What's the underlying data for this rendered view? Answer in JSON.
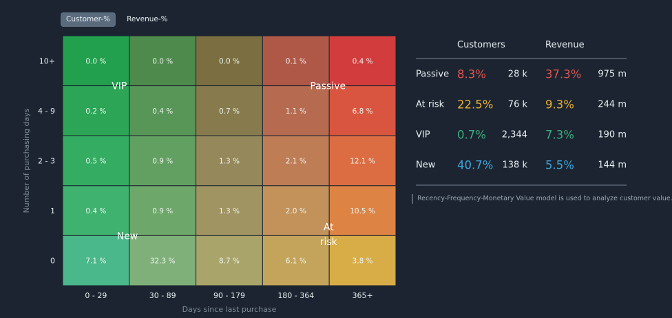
{
  "toggles": [
    {
      "label": "Customer-%",
      "active": true
    },
    {
      "label": "Revenue-%",
      "active": false
    }
  ],
  "chart_data": {
    "type": "heatmap",
    "xlabel": "Days since last purchase",
    "ylabel": "Number of purchasing days",
    "x_categories": [
      "0 - 29",
      "30 - 89",
      "90 - 179",
      "180 - 364",
      "365+"
    ],
    "y_categories": [
      "10+",
      "4 - 9",
      "2 - 3",
      "1",
      "0"
    ],
    "values": [
      [
        "0.0 %",
        "0.0 %",
        "0.0 %",
        "0.1 %",
        "0.4 %"
      ],
      [
        "0.2 %",
        "0.4 %",
        "0.7 %",
        "1.1 %",
        "6.8 %"
      ],
      [
        "0.5 %",
        "0.9 %",
        "1.3 %",
        "2.1 %",
        "12.1 %"
      ],
      [
        "0.4 %",
        "0.9 %",
        "1.3 %",
        "2.0 %",
        "10.5 %"
      ],
      [
        "7.1 %",
        "32.3 %",
        "8.7 %",
        "6.1 %",
        "3.8 %"
      ]
    ],
    "cell_colors": [
      [
        "#22a04e",
        "#4d8a4c",
        "#7b6e41",
        "#b05848",
        "#d33c3c"
      ],
      [
        "#2ca656",
        "#589658",
        "#877b4e",
        "#b66a50",
        "#d9553f"
      ],
      [
        "#34ad62",
        "#62a062",
        "#95885b",
        "#bf7d55",
        "#dc6d42"
      ],
      [
        "#3eb26e",
        "#6ea76a",
        "#a09462",
        "#c2925a",
        "#dd8445"
      ],
      [
        "#4ab88a",
        "#7fb07a",
        "#a9a46a",
        "#c4a45a",
        "#d8ad48"
      ]
    ],
    "segment_labels": [
      {
        "text": "VIP",
        "col": 0.85,
        "row": 1.0
      },
      {
        "text": "Passive",
        "col": 3.98,
        "row": 1.0
      },
      {
        "text": "New",
        "col": 0.97,
        "row": 4.0
      },
      {
        "text": "At",
        "col": 3.99,
        "row": 3.82
      },
      {
        "text": "risk",
        "col": 3.99,
        "row": 4.12
      }
    ]
  },
  "stats": {
    "headers": {
      "customers": "Customers",
      "revenue": "Revenue"
    },
    "rows": [
      {
        "name": "Passive",
        "customer_pct": "8.3%",
        "customer_count": "28 k",
        "revenue_pct": "37.3%",
        "revenue_amount": "975 m",
        "color": "#e0544f"
      },
      {
        "name": "At risk",
        "customer_pct": "22.5%",
        "customer_count": "76 k",
        "revenue_pct": "9.3%",
        "revenue_amount": "244 m",
        "color": "#e8b034"
      },
      {
        "name": "VIP",
        "customer_pct": "0.7%",
        "customer_count": "2,344",
        "revenue_pct": "7.3%",
        "revenue_amount": "190 m",
        "color": "#3fae7e"
      },
      {
        "name": "New",
        "customer_pct": "40.7%",
        "customer_count": "138 k",
        "revenue_pct": "5.5%",
        "revenue_amount": "144 m",
        "color": "#3ea7dd"
      }
    ],
    "note": "Recency-Frequency-Monetary Value model is used to analyze customer value."
  }
}
